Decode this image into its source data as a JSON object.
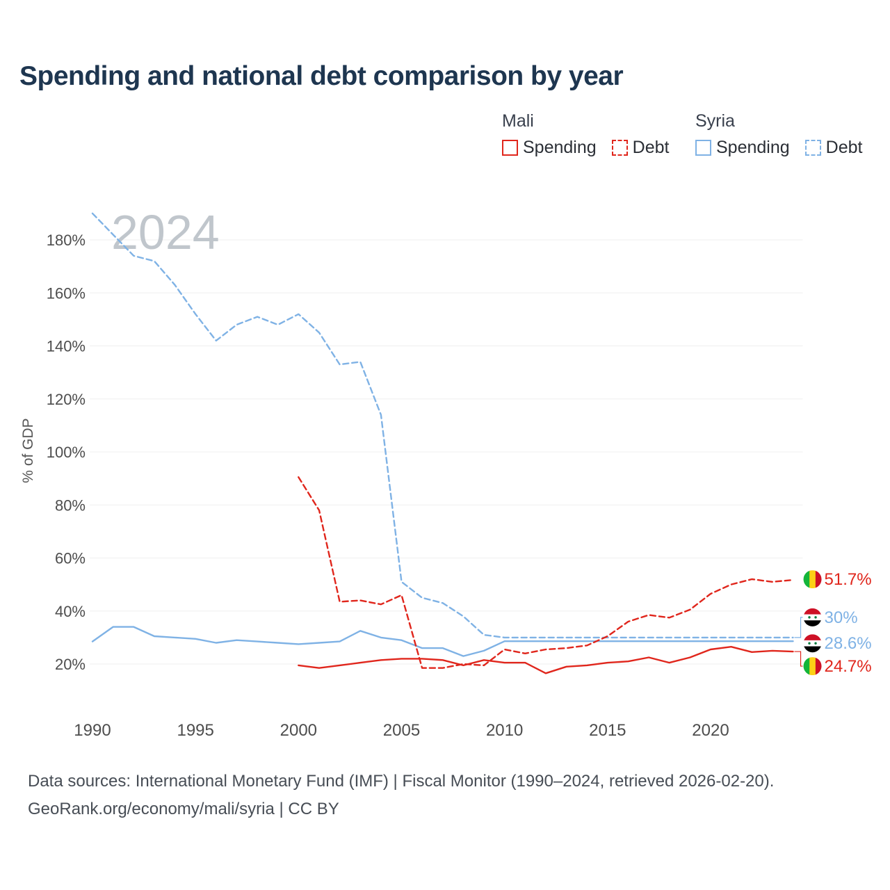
{
  "title": "Spending and national debt comparison by year",
  "watermark": "2024",
  "legend": {
    "groups": [
      {
        "country": "Mali",
        "items": [
          {
            "label": "Spending",
            "style": "solid",
            "color": "#e0261c"
          },
          {
            "label": "Debt",
            "style": "dashed",
            "color": "#e0261c"
          }
        ]
      },
      {
        "country": "Syria",
        "items": [
          {
            "label": "Spending",
            "style": "solid",
            "color": "#7fb2e5"
          },
          {
            "label": "Debt",
            "style": "dashed",
            "color": "#7fb2e5"
          }
        ]
      }
    ]
  },
  "chart_data": {
    "type": "line",
    "title": "Spending and national debt comparison by year",
    "xlabel": "",
    "ylabel": "% of GDP",
    "x": [
      1990,
      1991,
      1992,
      1993,
      1994,
      1995,
      1996,
      1997,
      1998,
      1999,
      2000,
      2001,
      2002,
      2003,
      2004,
      2005,
      2006,
      2007,
      2008,
      2009,
      2010,
      2011,
      2012,
      2013,
      2014,
      2015,
      2016,
      2017,
      2018,
      2019,
      2020,
      2021,
      2022,
      2023,
      2024
    ],
    "xticks": [
      1990,
      1995,
      2000,
      2005,
      2010,
      2015,
      2020
    ],
    "yticks": [
      20,
      40,
      60,
      80,
      100,
      120,
      140,
      160,
      180
    ],
    "ylim": [
      12,
      192
    ],
    "grid": true,
    "legend_position": "top-right",
    "series": [
      {
        "name": "Syria Debt",
        "country": "Syria",
        "metric": "Debt",
        "color": "#7fb2e5",
        "dash": true,
        "end_label": "30%",
        "values": [
          190,
          182,
          174,
          172,
          163,
          152,
          142,
          148,
          151,
          148,
          152,
          145,
          133,
          134,
          114,
          51,
          45,
          43,
          38,
          31,
          30,
          30,
          30,
          30,
          30,
          30,
          30,
          30,
          30,
          30,
          30,
          30,
          30,
          30,
          30
        ]
      },
      {
        "name": "Syria Spending",
        "country": "Syria",
        "metric": "Spending",
        "color": "#7fb2e5",
        "dash": false,
        "end_label": "28.6%",
        "values": [
          28.5,
          34,
          34,
          30.5,
          30,
          29.5,
          28,
          29,
          28.5,
          28,
          27.5,
          28,
          28.5,
          32.5,
          30,
          29,
          26,
          26,
          23,
          25,
          28.6,
          28.6,
          28.6,
          28.6,
          28.6,
          28.6,
          28.6,
          28.6,
          28.6,
          28.6,
          28.6,
          28.6,
          28.6,
          28.6,
          28.6
        ]
      },
      {
        "name": "Mali Debt",
        "country": "Mali",
        "metric": "Debt",
        "color": "#e0261c",
        "dash": true,
        "end_label": "51.7%",
        "values": [
          null,
          null,
          null,
          null,
          null,
          null,
          null,
          null,
          null,
          null,
          90.5,
          78,
          43.5,
          44,
          42.5,
          46,
          18.5,
          18.5,
          20,
          19.5,
          25.5,
          24,
          25.5,
          26,
          27,
          30.5,
          36,
          38.5,
          37.5,
          40.5,
          46.5,
          50,
          52,
          51,
          51.7
        ]
      },
      {
        "name": "Mali Spending",
        "country": "Mali",
        "metric": "Spending",
        "color": "#e0261c",
        "dash": false,
        "end_label": "24.7%",
        "values": [
          null,
          null,
          null,
          null,
          null,
          null,
          null,
          null,
          null,
          null,
          19.5,
          18.5,
          19.5,
          20.5,
          21.5,
          22,
          22,
          21.5,
          19.5,
          21.5,
          20.5,
          20.5,
          16.5,
          19,
          19.5,
          20.5,
          21,
          22.5,
          20.5,
          22.5,
          25.5,
          26.5,
          24.5,
          25,
          24.7
        ]
      }
    ]
  },
  "footer": {
    "line1": "Data sources: International Monetary Fund (IMF) | Fiscal Monitor (1990–2024, retrieved 2026-02-20).",
    "line2": "GeoRank.org/economy/mali/syria | CC BY"
  }
}
